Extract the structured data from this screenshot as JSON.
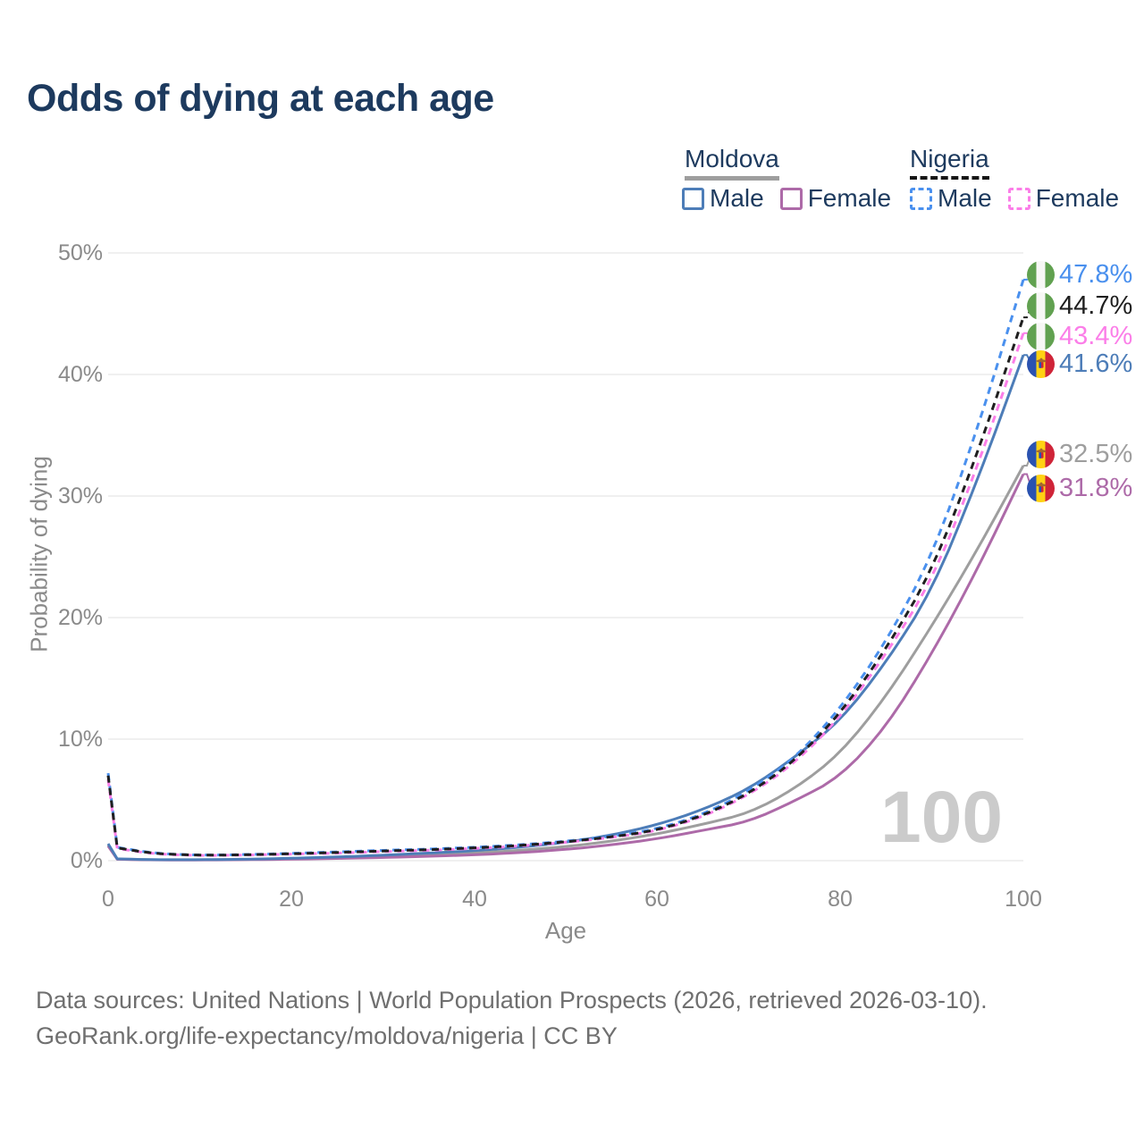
{
  "title": "Odds of dying at each age",
  "legend": {
    "moldova": {
      "label": "Moldova",
      "male": "Male",
      "female": "Female"
    },
    "nigeria": {
      "label": "Nigeria",
      "male": "Male",
      "female": "Female"
    }
  },
  "watermark": "100",
  "axes": {
    "x_label": "Age",
    "y_label": "Probability of dying",
    "x_ticks": [
      "0",
      "20",
      "40",
      "60",
      "80",
      "100"
    ],
    "y_ticks": [
      "0%",
      "10%",
      "20%",
      "30%",
      "40%",
      "50%"
    ]
  },
  "footer": {
    "line1": "Data sources: United Nations | World Population Prospects (2026, retrieved 2026-03-10).",
    "line2": "GeoRank.org/life-expectancy/moldova/nigeria | CC BY"
  },
  "colors": {
    "title_text": "#1d3a5e",
    "grid": "#ececec",
    "axis_text": "#8a8a8a",
    "moldova_male": "#4d7db8",
    "moldova_female": "#ad6aa8",
    "moldova_both": "#9e9e9e",
    "nigeria_male": "#4a90ee",
    "nigeria_female": "#fb7ee8",
    "nigeria_both": "#1f1f1f"
  },
  "chart_data": {
    "type": "line",
    "title": "Odds of dying at each age",
    "xlabel": "Age",
    "ylabel": "Probability of dying",
    "xlim": [
      0,
      100
    ],
    "ylim": [
      0,
      50
    ],
    "grid": "horizontal-only",
    "legend_position": "top-right",
    "x": [
      0,
      1,
      5,
      10,
      15,
      20,
      25,
      30,
      35,
      40,
      45,
      50,
      55,
      60,
      65,
      70,
      75,
      80,
      85,
      90,
      95,
      100
    ],
    "series": [
      {
        "id": "nigeria-male",
        "name": "Nigeria Male",
        "color": "#4a90ee",
        "dashed": true,
        "flag": "nigeria",
        "end_label": "47.8%",
        "values": [
          7.2,
          1.1,
          0.6,
          0.45,
          0.5,
          0.6,
          0.72,
          0.85,
          0.95,
          1.1,
          1.3,
          1.6,
          2.0,
          2.6,
          3.8,
          5.7,
          8.4,
          12.5,
          18.0,
          25.0,
          35.5,
          47.8
        ]
      },
      {
        "id": "nigeria-both",
        "name": "Nigeria Both sexes",
        "color": "#1f1f1f",
        "dashed": true,
        "flag": "nigeria",
        "end_label": "44.7%",
        "values": [
          7.0,
          1.05,
          0.58,
          0.44,
          0.48,
          0.57,
          0.67,
          0.8,
          0.9,
          1.05,
          1.25,
          1.55,
          1.95,
          2.5,
          3.7,
          5.5,
          8.2,
          12.1,
          17.4,
          23.8,
          33.5,
          44.7
        ]
      },
      {
        "id": "nigeria-female",
        "name": "Nigeria Female",
        "color": "#fb7ee8",
        "dashed": true,
        "flag": "nigeria",
        "end_label": "43.4%",
        "values": [
          6.7,
          1.0,
          0.55,
          0.42,
          0.46,
          0.54,
          0.62,
          0.75,
          0.85,
          1.0,
          1.2,
          1.5,
          1.9,
          2.45,
          3.6,
          5.4,
          8.0,
          11.8,
          17.0,
          23.0,
          32.4,
          43.4
        ]
      },
      {
        "id": "moldova-male",
        "name": "Moldova Male",
        "color": "#4d7db8",
        "dashed": false,
        "flag": "moldova",
        "end_label": "41.6%",
        "values": [
          1.4,
          0.15,
          0.08,
          0.08,
          0.12,
          0.2,
          0.3,
          0.45,
          0.62,
          0.82,
          1.1,
          1.5,
          2.1,
          2.95,
          4.2,
          5.9,
          8.5,
          11.5,
          16.3,
          22.2,
          31.3,
          41.6
        ]
      },
      {
        "id": "moldova-both",
        "name": "Moldova Both sexes",
        "color": "#9e9e9e",
        "dashed": false,
        "flag": "moldova",
        "end_label": "32.5%",
        "values": [
          1.3,
          0.13,
          0.07,
          0.07,
          0.1,
          0.16,
          0.24,
          0.35,
          0.48,
          0.63,
          0.85,
          1.15,
          1.6,
          2.2,
          3.0,
          3.9,
          5.9,
          8.8,
          13.5,
          19.3,
          25.6,
          32.5
        ]
      },
      {
        "id": "moldova-female",
        "name": "Moldova Female",
        "color": "#ad6aa8",
        "dashed": false,
        "flag": "moldova",
        "end_label": "31.8%",
        "values": [
          1.2,
          0.12,
          0.06,
          0.06,
          0.08,
          0.12,
          0.18,
          0.26,
          0.36,
          0.48,
          0.66,
          0.92,
          1.3,
          1.8,
          2.5,
          3.2,
          4.9,
          6.9,
          11.0,
          17.0,
          24.0,
          31.8
        ]
      }
    ]
  }
}
